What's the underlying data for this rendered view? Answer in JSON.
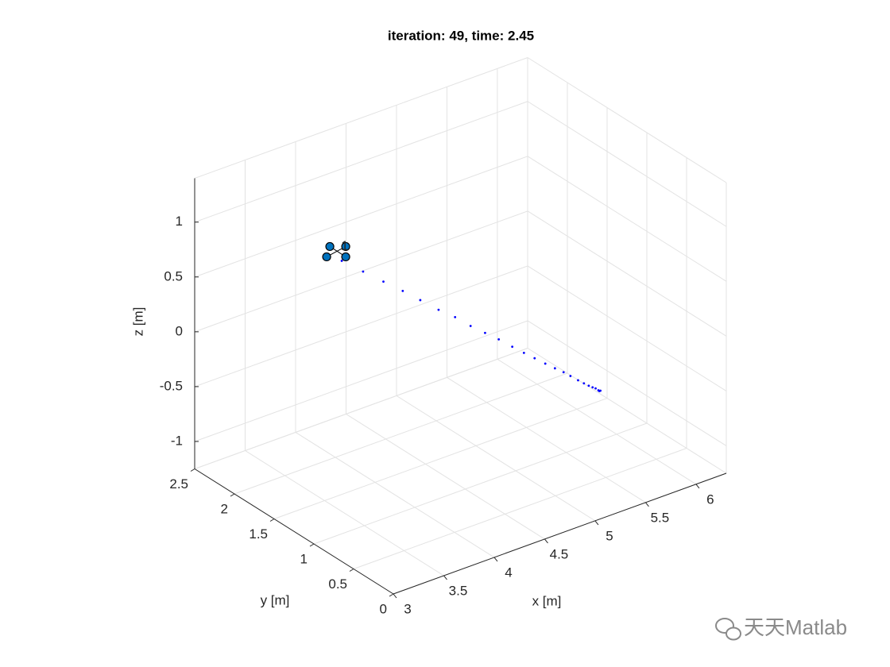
{
  "chart_data": {
    "type": "scatter3d",
    "title": "iteration: 49, time: 2.45",
    "xlabel": "x [m]",
    "ylabel": "y [m]",
    "zlabel": "z [m]",
    "x": [
      5.84,
      5.83,
      5.82,
      5.8,
      5.77,
      5.74,
      5.7,
      5.65,
      5.59,
      5.53,
      5.46,
      5.38,
      5.29,
      5.2,
      5.1,
      4.99,
      4.87,
      4.75,
      4.62,
      4.48,
      4.33,
      4.18,
      4.02,
      3.85,
      3.67
    ],
    "y": [
      1,
      1,
      1,
      1.01,
      1.01,
      1.02,
      1.03,
      1.04,
      1.06,
      1.07,
      1.09,
      1.11,
      1.13,
      1.15,
      1.17,
      1.2,
      1.22,
      1.25,
      1.28,
      1.31,
      1.35,
      1.38,
      1.42,
      1.46,
      1.5
    ],
    "z": [
      -0.8,
      -0.8,
      -0.79,
      -0.77,
      -0.75,
      -0.73,
      -0.7,
      -0.66,
      -0.61,
      -0.56,
      -0.51,
      -0.45,
      -0.38,
      -0.31,
      -0.23,
      -0.14,
      -0.05,
      0.04,
      0.15,
      0.25,
      0.37,
      0.49,
      0.61,
      0.74,
      0.88
    ],
    "color": "#0000ff",
    "marker_label": "1",
    "marker_color": "#0072bd",
    "xlim": [
      3,
      6.3
    ],
    "ylim": [
      0,
      2.5
    ],
    "zlim": [
      -1.25,
      1.4
    ],
    "xticks": [
      3,
      3.5,
      4,
      4.5,
      5,
      5.5,
      6
    ],
    "yticks": [
      0,
      0.5,
      1,
      1.5,
      2,
      2.5
    ],
    "zticks": [
      -1,
      -0.5,
      0,
      0.5,
      1
    ],
    "grid": true
  },
  "watermark": "天天Matlab"
}
